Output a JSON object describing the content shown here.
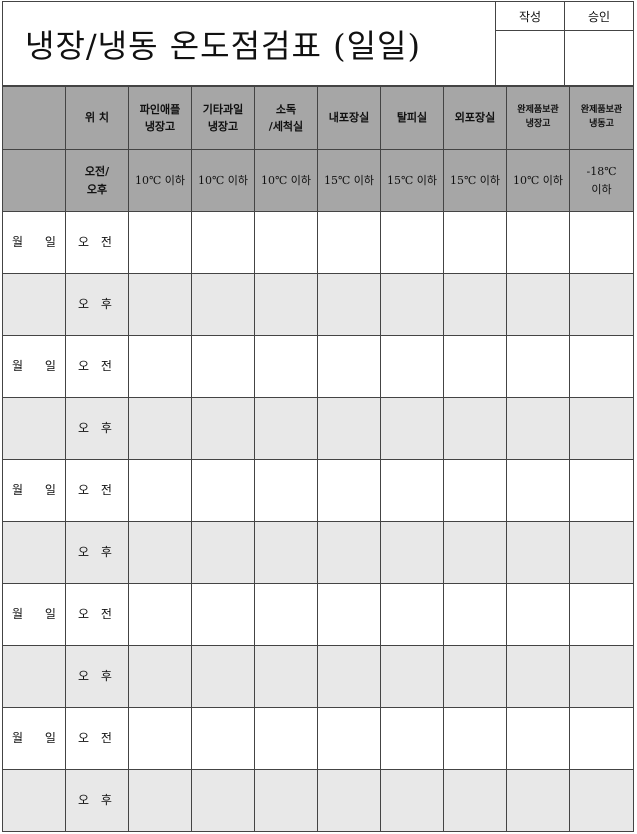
{
  "title": "냉장/냉동 온도점검표 (일일)",
  "approval": {
    "written": "작성",
    "approved": "승인"
  },
  "header": {
    "location": "위 치",
    "columns": [
      "파인애플\n냉장고",
      "기타과일\n냉장고",
      "소독\n/세척실",
      "내포장실",
      "탈피실",
      "외포장실",
      "완제품보관\n냉장고",
      "완제품보관\n냉동고"
    ],
    "ampm": "오전/\n오후",
    "standards": [
      "10℃ 이하",
      "10℃ 이하",
      "10℃ 이하",
      "15℃ 이하",
      "15℃ 이하",
      "15℃ 이하",
      "10℃ 이하",
      "-18℃\n이하"
    ]
  },
  "day_label": "월 일",
  "am": "오 전",
  "pm": "오 후",
  "days": [
    {
      "label": "월 일",
      "am": "오 전",
      "pm": "오 후"
    },
    {
      "label": "월 일",
      "am": "오 전",
      "pm": "오 후"
    },
    {
      "label": "월 일",
      "am": "오 전",
      "pm": "오 후"
    },
    {
      "label": "월 일",
      "am": "오 전",
      "pm": "오 후"
    },
    {
      "label": "월 일",
      "am": "오 전",
      "pm": "오 후"
    }
  ]
}
